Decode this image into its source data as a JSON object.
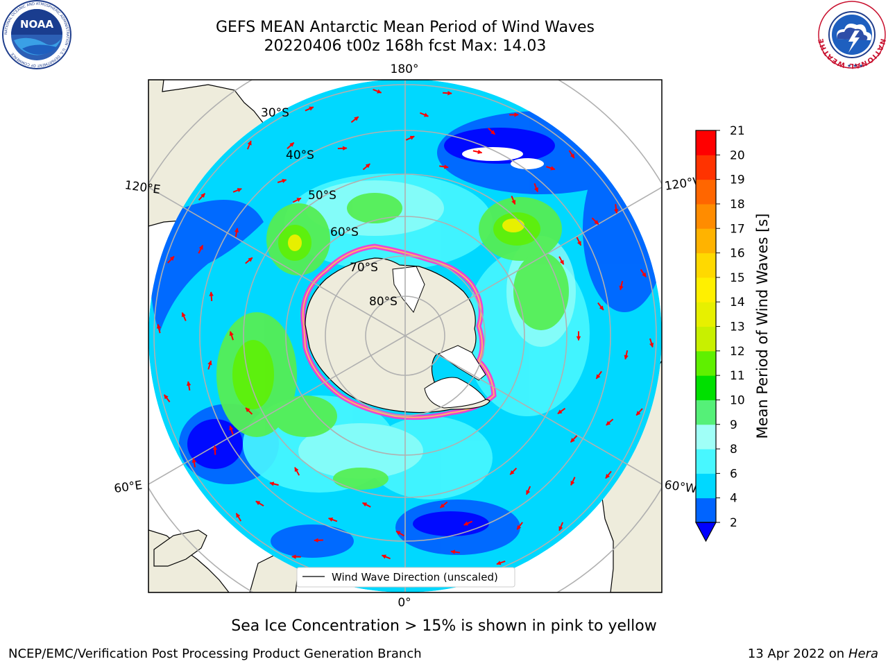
{
  "title": {
    "line1": "GEFS MEAN Antarctic Mean Period of Wind Waves",
    "line2": "20220406 t00z 168h fcst   Max: 14.03"
  },
  "logos": {
    "left": {
      "icon": "noaa-logo",
      "text": "NOAA",
      "ring_text": "NATIONAL OCEANIC AND ATMOSPHERIC ADMINISTRATION · U.S. DEPARTMENT OF COMMERCE"
    },
    "right": {
      "icon": "national-weather-service-logo",
      "ring_text": "NATIONAL WEATHER SERVICE"
    }
  },
  "map": {
    "projection": "south-polar-stereographic",
    "longitude_labels": {
      "top": "180°",
      "left_upper": "120°E",
      "left_lower": "60°E",
      "right_upper": "120°W",
      "right_lower": "60°W",
      "bottom": "0°"
    },
    "latitude_labels": [
      "30°S",
      "40°S",
      "50°S",
      "60°S",
      "70°S",
      "80°S"
    ],
    "legend": "Wind Wave Direction (unscaled)",
    "colors": {
      "land": "#eeecdc",
      "ice_sheet": "#ffffff",
      "ocean_low": "#0048ff",
      "ocean_mid": "#00e8ff",
      "ocean_high": "#55ee55",
      "ocean_max": "#e7f000",
      "arrow": "#ff0000",
      "sea_ice_edge": "#ff33cc",
      "grid": "#bbbbbb"
    }
  },
  "colorbar": {
    "label": "Mean Period of Wind Waves [s]",
    "ticks": [
      "2",
      "4",
      "6",
      "8",
      "9",
      "10",
      "11",
      "12",
      "13",
      "14",
      "15",
      "16",
      "17",
      "18",
      "19",
      "20",
      "21"
    ],
    "colors": [
      "#0064ff",
      "#00d8ff",
      "#48f7ff",
      "#a0fff7",
      "#55f078",
      "#00e000",
      "#5ff000",
      "#c8f000",
      "#e7f000",
      "#fff000",
      "#ffd900",
      "#ffb300",
      "#ff8c00",
      "#ff6600",
      "#ff3300",
      "#ff0000"
    ],
    "extend_color": "#0000ff"
  },
  "subtitle": "Sea Ice Concentration > 15% is shown in pink to yellow",
  "footer": {
    "left": "NCEP/EMC/Verification Post Processing Product Generation Branch",
    "right_text": "13 Apr 2022 on ",
    "right_machine": "Hera"
  }
}
